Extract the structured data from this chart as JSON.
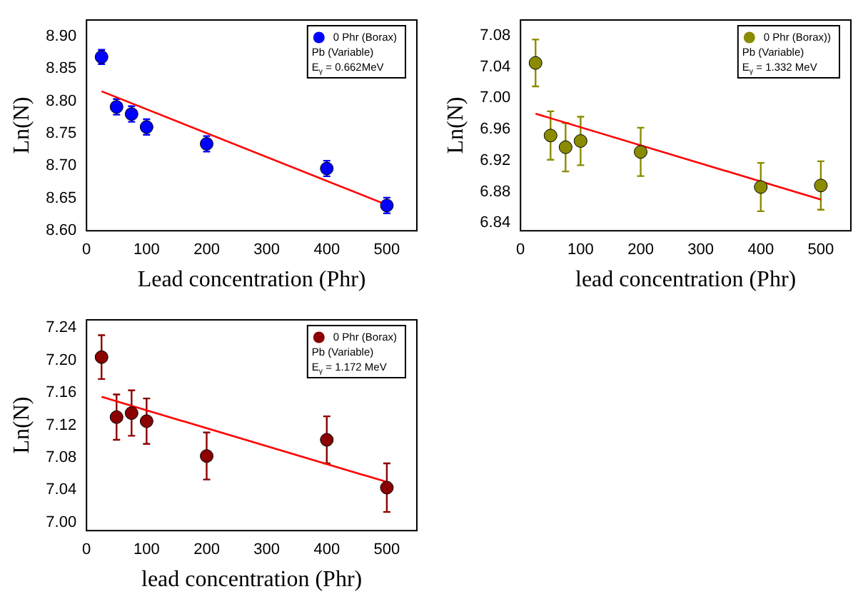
{
  "chart_data": [
    {
      "type": "scatter",
      "xlabel": "Lead concentration (Phr)",
      "ylabel": "Ln(N)",
      "x": [
        25,
        50,
        75,
        100,
        200,
        400,
        500
      ],
      "xlim": [
        0,
        550
      ],
      "xticks": [
        0,
        100,
        200,
        300,
        400,
        500
      ],
      "ylim": [
        8.6,
        8.925
      ],
      "yticks": [
        {
          "value": 8.6,
          "label": "8.60"
        },
        8.65,
        {
          "value": 8.7,
          "label": "8.70"
        },
        8.75,
        {
          "value": 8.8,
          "label": "8.80"
        },
        8.85,
        {
          "value": 8.9,
          "label": "8.90"
        }
      ],
      "grid": false,
      "legend": "top right",
      "annotations": [
        "Pb (Variable)",
        "E$_{γ}$ = 0.662MeV"
      ],
      "series": [
        {
          "name": "0 Phr (Borax)",
          "marker": "circle",
          "color": "#0000ff",
          "values": [
            8.868,
            8.791,
            8.78,
            8.76,
            8.734,
            8.696,
            8.639
          ],
          "errors": [
            0.011,
            0.012,
            0.012,
            0.012,
            0.012,
            0.012,
            0.012
          ]
        },
        {
          "type": "line",
          "color": "#ff0000",
          "values": [
            8.815,
            null,
            null,
            null,
            null,
            null,
            8.64
          ]
        }
      ]
    },
    {
      "type": "scatter",
      "xlabel": "lead concentration (Phr)",
      "ylabel": "Ln(N)",
      "x": [
        25,
        50,
        75,
        100,
        200,
        400,
        500
      ],
      "xlim": [
        0,
        550
      ],
      "xticks": [
        0,
        100,
        200,
        300,
        400,
        500
      ],
      "ylim": [
        6.83,
        7.1
      ],
      "yticks": [
        6.84,
        6.88,
        6.92,
        6.96,
        {
          "value": 7,
          "label": "7.00"
        },
        7.04,
        7.08
      ],
      "grid": false,
      "legend": "top right",
      "annotations": [
        "Pb (Variable)",
        "E$_{γ}$ = 1.332 MeV"
      ],
      "series": [
        {
          "name": "0 Phr (Borax))",
          "marker": "circle",
          "color": "#8b8b00",
          "values": [
            7.045,
            6.952,
            6.937,
            6.945,
            6.931,
            6.886,
            6.888
          ],
          "errors": [
            0.03,
            0.031,
            0.031,
            0.031,
            0.031,
            0.031,
            0.031
          ]
        },
        {
          "type": "line",
          "color": "#ff0000",
          "values": [
            6.98,
            null,
            null,
            null,
            null,
            null,
            6.87
          ]
        }
      ]
    },
    {
      "type": "scatter",
      "xlabel": "lead concentration (Phr)",
      "ylabel": "Ln(N)",
      "x": [
        25,
        50,
        75,
        100,
        200,
        400,
        500
      ],
      "xlim": [
        0,
        550
      ],
      "xticks": [
        0,
        100,
        200,
        300,
        400,
        500
      ],
      "ylim": [
        6.99,
        7.25
      ],
      "yticks": [
        {
          "value": 7,
          "label": "7.00"
        },
        7.04,
        7.08,
        7.12,
        7.16,
        {
          "value": 7.2,
          "label": "7.20"
        },
        7.24
      ],
      "grid": false,
      "legend": "top right",
      "annotations": [
        "Pb (Variable)",
        "E$_{γ}$ = 1.172 MeV"
      ],
      "series": [
        {
          "name": "0 Phr (Borax)",
          "marker": "circle",
          "color": "#8b0000",
          "values": [
            7.204,
            7.13,
            7.135,
            7.125,
            7.082,
            7.102,
            7.043
          ],
          "errors": [
            0.027,
            0.028,
            0.028,
            0.028,
            0.029,
            0.029,
            0.03
          ]
        },
        {
          "type": "line",
          "color": "#ff0000",
          "values": [
            7.155,
            null,
            null,
            null,
            null,
            null,
            7.05
          ]
        }
      ]
    }
  ]
}
